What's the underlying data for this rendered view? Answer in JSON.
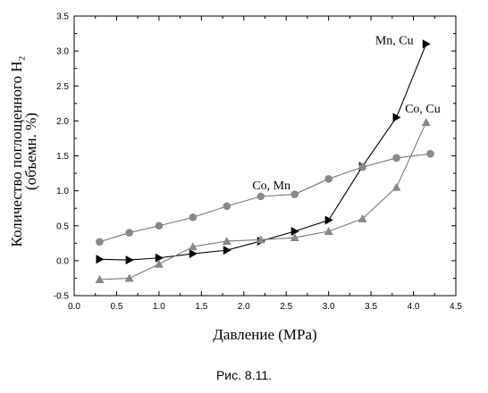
{
  "chart_data": {
    "type": "line",
    "xlabel": "Давление (MPa)",
    "ylabel_line1": "Количество поглощенного H₂",
    "ylabel_line2": "(объемн. %)",
    "xlim": [
      0.0,
      4.5
    ],
    "ylim": [
      -0.5,
      3.5
    ],
    "xticks": [
      "0.0",
      "0.5",
      "1.0",
      "1.5",
      "2.0",
      "2.5",
      "3.0",
      "3.5",
      "4.0",
      "4.5"
    ],
    "yticks": [
      "-0.5",
      "0.0",
      "0.5",
      "1.0",
      "1.5",
      "2.0",
      "2.5",
      "3.0",
      "3.5"
    ],
    "grid": false,
    "series": [
      {
        "name": "Mn, Cu",
        "marker": "triangle-right",
        "color": "#000000",
        "x": [
          0.3,
          0.65,
          1.0,
          1.4,
          1.8,
          2.2,
          2.6,
          3.0,
          3.4,
          3.8,
          4.15
        ],
        "y": [
          0.02,
          0.01,
          0.04,
          0.1,
          0.15,
          0.28,
          0.42,
          0.58,
          1.35,
          2.05,
          3.1
        ]
      },
      {
        "name": "Co, Cu",
        "marker": "triangle-up",
        "color": "#888888",
        "x": [
          0.3,
          0.65,
          1.0,
          1.4,
          1.8,
          2.2,
          2.6,
          3.0,
          3.4,
          3.8,
          4.15
        ],
        "y": [
          -0.27,
          -0.25,
          -0.05,
          0.2,
          0.28,
          0.3,
          0.33,
          0.42,
          0.6,
          1.05,
          1.98
        ]
      },
      {
        "name": "Co, Mn",
        "marker": "circle",
        "color": "#888888",
        "x": [
          0.3,
          0.65,
          1.0,
          1.4,
          1.8,
          2.2,
          2.6,
          3.0,
          3.4,
          3.8,
          4.2
        ],
        "y": [
          0.27,
          0.4,
          0.5,
          0.62,
          0.78,
          0.92,
          0.95,
          1.17,
          1.34,
          1.47,
          1.53
        ]
      }
    ],
    "annotations": [
      {
        "text": "Mn, Cu",
        "x": 3.55,
        "y": 3.1
      },
      {
        "text": "Co, Cu",
        "x": 3.9,
        "y": 2.12
      },
      {
        "text": "Co, Mn",
        "x": 2.1,
        "y": 1.02
      }
    ]
  },
  "caption": "Рис. 8.11."
}
